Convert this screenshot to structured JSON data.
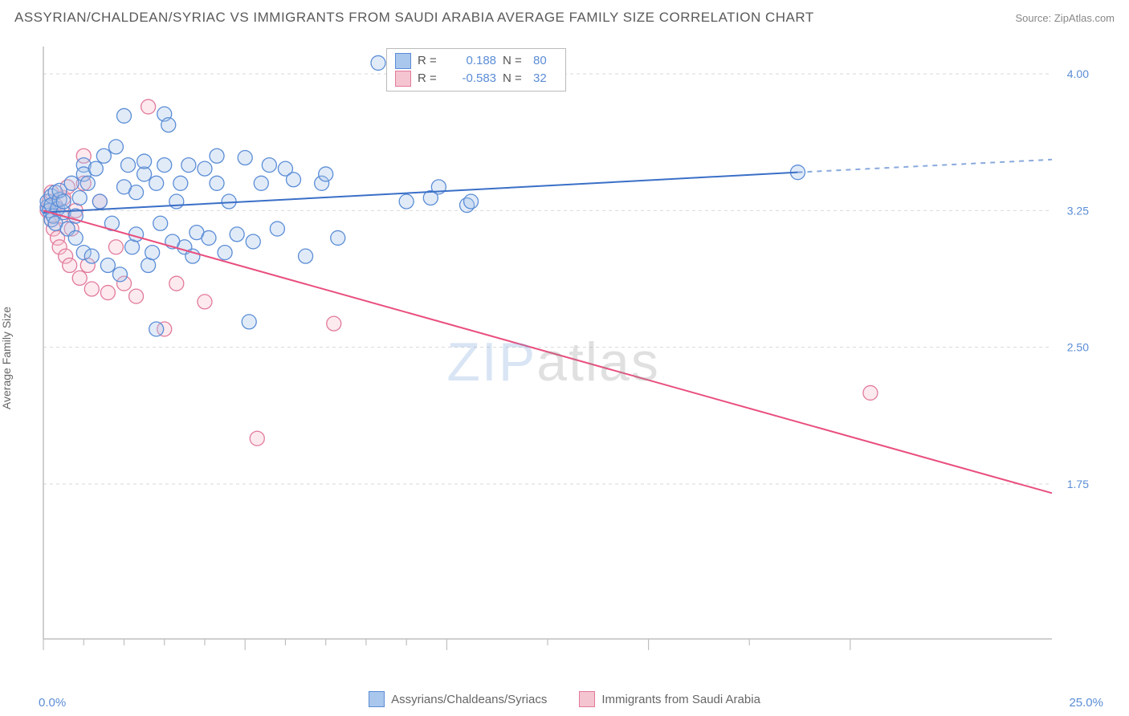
{
  "title": "ASSYRIAN/CHALDEAN/SYRIAC VS IMMIGRANTS FROM SAUDI ARABIA AVERAGE FAMILY SIZE CORRELATION CHART",
  "source": "Source: ZipAtlas.com",
  "ylabel": "Average Family Size",
  "watermark": {
    "part1": "ZIP",
    "part2": "atlas"
  },
  "chart": {
    "type": "scatter",
    "background_color": "#ffffff",
    "grid_color": "#d9d9d9",
    "axis_color": "#bfbfbf",
    "xlim": [
      0,
      25
    ],
    "ylim": [
      0.9,
      4.15
    ],
    "xtick_minor": [
      1,
      2,
      3,
      4,
      6,
      7,
      8,
      9,
      12.5,
      17.5
    ],
    "xtick_major": [
      0,
      5,
      10,
      15,
      20
    ],
    "xrange_labels": {
      "min": "0.0%",
      "max": "25.0%"
    },
    "ytick_values": [
      1.75,
      2.5,
      3.25,
      4.0
    ],
    "ytick_labels": [
      "1.75",
      "2.50",
      "3.25",
      "4.00"
    ],
    "tick_label_color": "#5b8dd6",
    "tick_label_fontsize": 14,
    "title_fontsize": 17,
    "marker_radius": 9,
    "marker_stroke_width": 1.3,
    "marker_fill_opacity": 0.35
  },
  "series": {
    "a": {
      "label": "Assyrians/Chaldeans/Syriacs",
      "color_fill": "#a9c6ec",
      "color_stroke": "#5b8dd6",
      "line_color": "#3a6fc7",
      "line_width": 2,
      "R": "0.188",
      "N": "80",
      "trend": {
        "x1": 0.0,
        "y1": 3.24,
        "x2": 18.7,
        "y2": 3.46,
        "dash_x2": 25.0,
        "dash_y2": 3.53
      },
      "points": [
        [
          0.1,
          3.27
        ],
        [
          0.1,
          3.3
        ],
        [
          0.2,
          3.33
        ],
        [
          0.15,
          3.25
        ],
        [
          0.2,
          3.2
        ],
        [
          0.2,
          3.28
        ],
        [
          0.3,
          3.35
        ],
        [
          0.25,
          3.22
        ],
        [
          0.3,
          3.18
        ],
        [
          0.35,
          3.26
        ],
        [
          0.4,
          3.31
        ],
        [
          0.4,
          3.36
        ],
        [
          0.5,
          3.24
        ],
        [
          0.5,
          3.3
        ],
        [
          0.6,
          3.15
        ],
        [
          0.7,
          3.4
        ],
        [
          0.8,
          3.22
        ],
        [
          0.8,
          3.1
        ],
        [
          0.9,
          3.32
        ],
        [
          1.0,
          3.5
        ],
        [
          1.0,
          3.02
        ],
        [
          1.0,
          3.45
        ],
        [
          1.1,
          3.4
        ],
        [
          1.2,
          3.0
        ],
        [
          1.3,
          3.48
        ],
        [
          1.4,
          3.3
        ],
        [
          1.5,
          3.55
        ],
        [
          1.6,
          2.95
        ],
        [
          1.7,
          3.18
        ],
        [
          1.8,
          3.6
        ],
        [
          1.9,
          2.9
        ],
        [
          2.0,
          3.77
        ],
        [
          2.0,
          3.38
        ],
        [
          2.1,
          3.5
        ],
        [
          2.2,
          3.05
        ],
        [
          2.3,
          3.12
        ],
        [
          2.3,
          3.35
        ],
        [
          2.5,
          3.45
        ],
        [
          2.5,
          3.52
        ],
        [
          2.6,
          2.95
        ],
        [
          2.7,
          3.02
        ],
        [
          2.8,
          3.4
        ],
        [
          2.8,
          2.6
        ],
        [
          2.9,
          3.18
        ],
        [
          3.0,
          3.5
        ],
        [
          3.0,
          3.78
        ],
        [
          3.1,
          3.72
        ],
        [
          3.2,
          3.08
        ],
        [
          3.3,
          3.3
        ],
        [
          3.4,
          3.4
        ],
        [
          3.5,
          3.05
        ],
        [
          3.6,
          3.5
        ],
        [
          3.7,
          3.0
        ],
        [
          3.8,
          3.13
        ],
        [
          4.0,
          3.48
        ],
        [
          4.1,
          3.1
        ],
        [
          4.3,
          3.55
        ],
        [
          4.3,
          3.4
        ],
        [
          4.5,
          3.02
        ],
        [
          4.6,
          3.3
        ],
        [
          4.8,
          3.12
        ],
        [
          5.0,
          3.54
        ],
        [
          5.1,
          2.64
        ],
        [
          5.2,
          3.08
        ],
        [
          5.4,
          3.4
        ],
        [
          5.6,
          3.5
        ],
        [
          5.8,
          3.15
        ],
        [
          6.0,
          3.48
        ],
        [
          6.2,
          3.42
        ],
        [
          6.5,
          3.0
        ],
        [
          6.9,
          3.4
        ],
        [
          7.0,
          3.45
        ],
        [
          7.3,
          3.1
        ],
        [
          8.3,
          4.06
        ],
        [
          9.0,
          3.3
        ],
        [
          9.6,
          3.32
        ],
        [
          9.8,
          3.38
        ],
        [
          10.5,
          3.28
        ],
        [
          10.6,
          3.3
        ],
        [
          18.7,
          3.46
        ]
      ]
    },
    "b": {
      "label": "Immigrants from Saudi Arabia",
      "color_fill": "#f5c4d1",
      "color_stroke": "#e27a9a",
      "line_color": "#e94f7e",
      "line_width": 2,
      "R": "-0.583",
      "N": "32",
      "trend": {
        "x1": 0.0,
        "y1": 3.25,
        "x2": 25.0,
        "y2": 1.7
      },
      "points": [
        [
          0.1,
          3.25
        ],
        [
          0.15,
          3.3
        ],
        [
          0.2,
          3.35
        ],
        [
          0.2,
          3.2
        ],
        [
          0.25,
          3.15
        ],
        [
          0.3,
          3.28
        ],
        [
          0.35,
          3.1
        ],
        [
          0.4,
          3.05
        ],
        [
          0.45,
          3.22
        ],
        [
          0.5,
          3.32
        ],
        [
          0.55,
          3.0
        ],
        [
          0.6,
          3.38
        ],
        [
          0.65,
          2.95
        ],
        [
          0.7,
          3.15
        ],
        [
          0.8,
          3.25
        ],
        [
          0.9,
          2.88
        ],
        [
          1.0,
          3.4
        ],
        [
          1.0,
          3.55
        ],
        [
          1.1,
          2.95
        ],
        [
          1.2,
          2.82
        ],
        [
          1.4,
          3.3
        ],
        [
          1.6,
          2.8
        ],
        [
          1.8,
          3.05
        ],
        [
          2.0,
          2.85
        ],
        [
          2.3,
          2.78
        ],
        [
          2.6,
          3.82
        ],
        [
          3.0,
          2.6
        ],
        [
          3.3,
          2.85
        ],
        [
          4.0,
          2.75
        ],
        [
          5.3,
          2.0
        ],
        [
          7.2,
          2.63
        ],
        [
          20.5,
          2.25
        ]
      ]
    }
  },
  "bottom_legend": [
    {
      "swatch_fill": "#a9c6ec",
      "swatch_stroke": "#5b8dd6",
      "label_key": "series.a.label"
    },
    {
      "swatch_fill": "#f5c4d1",
      "swatch_stroke": "#e27a9a",
      "label_key": "series.b.label"
    }
  ]
}
